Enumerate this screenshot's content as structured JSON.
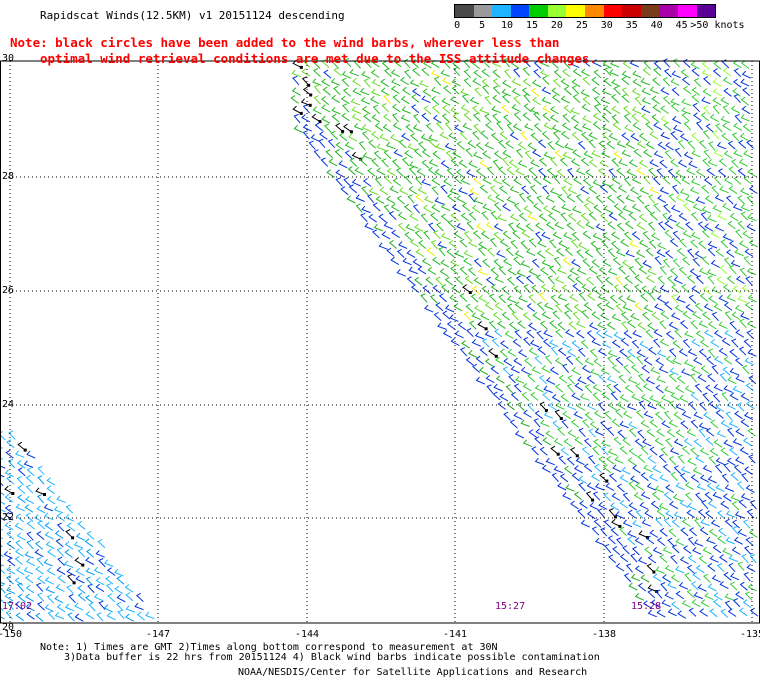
{
  "title": "Rapidscat Winds(12.5KM) v1 20151124 descending",
  "notes": [
    "Note: black circles have been added to the wind barbs, wherever less than",
    "optimal wind retrieval conditions are met due to the ISS attitude changes."
  ],
  "color_scale": {
    "labels": [
      "0",
      "5",
      "10",
      "15",
      "20",
      "25",
      "30",
      "35",
      "40",
      "45",
      ">50 knots"
    ],
    "colors": [
      "#4a4a4a",
      "#9a9a9a",
      "#1fb4ff",
      "#0044ff",
      "#00cc00",
      "#99ff33",
      "#ffff00",
      "#ff8800",
      "#ff0000",
      "#cc0000",
      "#7a3b1a",
      "#aa00aa",
      "#ff00ff",
      "#5a0099"
    ]
  },
  "map": {
    "lon_labels": [
      "-150",
      "-147",
      "-144",
      "-141",
      "-138",
      "-135"
    ],
    "lat_labels": [
      "30",
      "28",
      "26",
      "24",
      "22",
      "20"
    ],
    "times": [
      "17:02",
      "15:27",
      "15:28"
    ]
  },
  "footer": [
    "Note: 1) Times are GMT 2)Times along bottom correspond to measurement at 30N",
    "3)Data buffer is 22 hrs from 20151124 4) Black wind barbs indicate possible contamination",
    "NOAA/NESDIS/Center for Satellite Applications and Research"
  ]
}
